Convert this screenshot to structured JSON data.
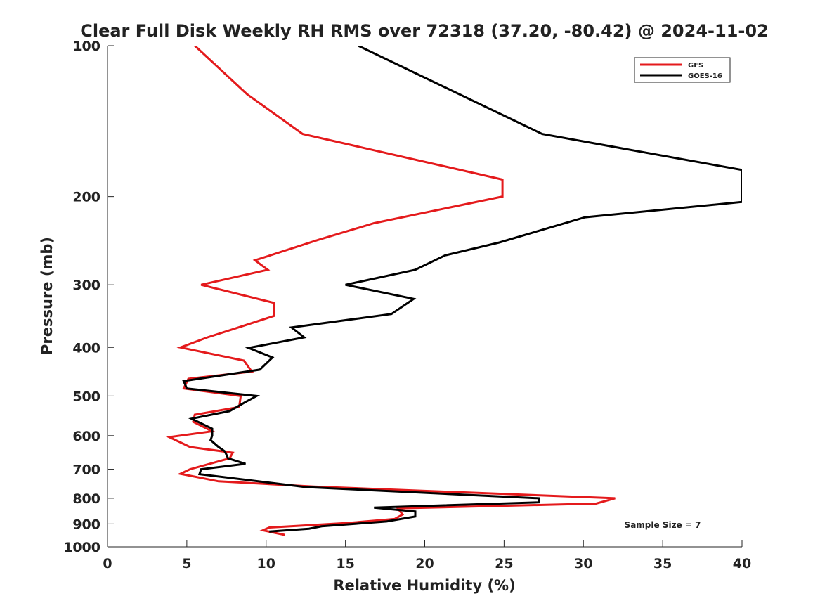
{
  "chart_data": {
    "type": "line",
    "title": "Clear Full Disk Weekly RH RMS over 72318 (37.20, -80.42) @ 2024-11-02",
    "xlabel": "Relative Humidity (%)",
    "ylabel": "Pressure (mb)",
    "xlim": [
      0,
      40
    ],
    "ylim": [
      1000,
      100
    ],
    "y_scale": "log",
    "x_ticks": [
      "0",
      "5",
      "10",
      "15",
      "20",
      "25",
      "30",
      "35",
      "40"
    ],
    "y_ticks": [
      "100",
      "200",
      "300",
      "400",
      "500",
      "600",
      "700",
      "800",
      "900",
      "1000"
    ],
    "grid": false,
    "legend_position": "top-right",
    "annotation": "Sample Size = 7",
    "series": [
      {
        "name": "GFS",
        "color": "#e41a1c",
        "points": [
          [
            5.5,
            100
          ],
          [
            8.8,
            125
          ],
          [
            12.3,
            150
          ],
          [
            24.9,
            185
          ],
          [
            24.9,
            200
          ],
          [
            16.8,
            226
          ],
          [
            13.3,
            244
          ],
          [
            9.3,
            268
          ],
          [
            10.1,
            280
          ],
          [
            5.9,
            300
          ],
          [
            10.5,
            326
          ],
          [
            10.5,
            346
          ],
          [
            7.9,
            368
          ],
          [
            6.3,
            382
          ],
          [
            4.6,
            400
          ],
          [
            8.6,
            425
          ],
          [
            9.1,
            447
          ],
          [
            5.1,
            462
          ],
          [
            4.8,
            483
          ],
          [
            8.4,
            500
          ],
          [
            8.3,
            526
          ],
          [
            5.5,
            545
          ],
          [
            5.4,
            563
          ],
          [
            6.6,
            588
          ],
          [
            3.9,
            604
          ],
          [
            5.2,
            632
          ],
          [
            7.9,
            649
          ],
          [
            7.7,
            666
          ],
          [
            5.2,
            700
          ],
          [
            4.6,
            715
          ],
          [
            7.0,
            740
          ],
          [
            13.0,
            758
          ],
          [
            32.0,
            800
          ],
          [
            30.8,
            820
          ],
          [
            18.3,
            838
          ],
          [
            18.6,
            862
          ],
          [
            18.1,
            880
          ],
          [
            15.0,
            897
          ],
          [
            10.2,
            915
          ],
          [
            9.8,
            927
          ],
          [
            11.2,
            947
          ]
        ]
      },
      {
        "name": "GOES-16",
        "color": "#000000",
        "points": [
          [
            15.8,
            100
          ],
          [
            27.4,
            150
          ],
          [
            40.0,
            177
          ],
          [
            40.0,
            205
          ],
          [
            30.1,
            220
          ],
          [
            24.7,
            247
          ],
          [
            21.3,
            262
          ],
          [
            19.4,
            280
          ],
          [
            15.0,
            300
          ],
          [
            19.3,
            320
          ],
          [
            17.9,
            343
          ],
          [
            11.6,
            365
          ],
          [
            12.4,
            382
          ],
          [
            8.9,
            401
          ],
          [
            10.4,
            419
          ],
          [
            9.6,
            443
          ],
          [
            4.8,
            467
          ],
          [
            5.0,
            483
          ],
          [
            9.4,
            500
          ],
          [
            8.7,
            514
          ],
          [
            7.7,
            536
          ],
          [
            5.3,
            555
          ],
          [
            6.6,
            581
          ],
          [
            6.6,
            600
          ],
          [
            6.5,
            612
          ],
          [
            7.0,
            632
          ],
          [
            7.4,
            645
          ],
          [
            7.6,
            666
          ],
          [
            8.7,
            683
          ],
          [
            5.9,
            700
          ],
          [
            5.8,
            716
          ],
          [
            12.5,
            760
          ],
          [
            27.2,
            800
          ],
          [
            27.2,
            815
          ],
          [
            16.8,
            835
          ],
          [
            19.4,
            850
          ],
          [
            19.4,
            870
          ],
          [
            17.6,
            890
          ],
          [
            13.5,
            910
          ],
          [
            12.7,
            920
          ],
          [
            10.2,
            932
          ]
        ]
      }
    ]
  }
}
